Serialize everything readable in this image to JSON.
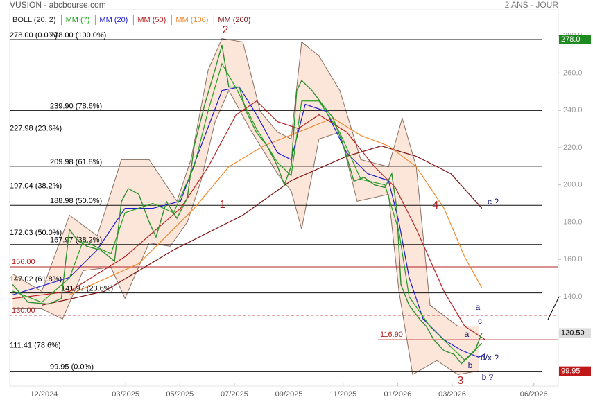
{
  "chart_data": {
    "type": "line",
    "title": "VUSION - abcbourse.com",
    "subtitle": "2 ANS - JOUR",
    "xlim": [
      2024.812,
      2026.492
    ],
    "xticks": [
      {
        "value": 2024.917,
        "label": "12/2024"
      },
      {
        "value": 2025.167,
        "label": "03/2025"
      },
      {
        "value": 2025.333,
        "label": "05/2025"
      },
      {
        "value": 2025.5,
        "label": "07/2025"
      },
      {
        "value": 2025.667,
        "label": "09/2025"
      },
      {
        "value": 2025.833,
        "label": "11/2025"
      },
      {
        "value": 2026.0,
        "label": "01/2026"
      },
      {
        "value": 2026.167,
        "label": "03/2026"
      },
      {
        "value": 2026.417,
        "label": "06/2026"
      }
    ],
    "ylim": [
      92,
      294
    ],
    "yticks": [
      {
        "value": 140,
        "label": "140.0"
      },
      {
        "value": 160,
        "label": "160.0"
      },
      {
        "value": 180,
        "label": "180.0"
      },
      {
        "value": 200,
        "label": "200.0"
      },
      {
        "value": 220,
        "label": "220.0"
      },
      {
        "value": 240,
        "label": "240.0"
      },
      {
        "value": 260,
        "label": "260.0"
      },
      {
        "value": 280,
        "label": "280.0"
      }
    ],
    "bollinger": {
      "name": "BOLL (20, 2)",
      "color": "#8a6e62",
      "fill": "#fbe2d2",
      "upper": {
        "x": [
          2024.821,
          2024.91,
          2024.995,
          2025.08,
          2025.154,
          2025.239,
          2025.324,
          2025.367,
          2025.42,
          2025.462,
          2025.526,
          2025.579,
          2025.632,
          2025.674,
          2025.706,
          2025.759,
          2025.823,
          2025.887,
          2025.972,
          2026.014,
          2026.057,
          2026.099,
          2026.184,
          2026.248
        ],
        "values": [
          152.1,
          142.8,
          183.7,
          172.6,
          213.5,
          213.5,
          191.2,
          213.5,
          261.8,
          278.5,
          276.7,
          239.5,
          228.3,
          224.6,
          276.7,
          269.2,
          250.6,
          213.5,
          209.7,
          235.8,
          209.7,
          135.4,
          124.2,
          124.2
        ]
      },
      "lower": {
        "x": [
          2024.821,
          2024.91,
          2024.974,
          2025.037,
          2025.122,
          2025.165,
          2025.239,
          2025.303,
          2025.356,
          2025.398,
          2025.441,
          2025.483,
          2025.547,
          2025.632,
          2025.674,
          2025.706,
          2025.759,
          2025.823,
          2025.876,
          2025.972,
          2026.004,
          2026.046,
          2026.12,
          2026.184,
          2026.248
        ],
        "values": [
          133.5,
          133.5,
          128,
          154,
          155.8,
          139.1,
          168.8,
          167,
          180,
          202.3,
          233.9,
          250.6,
          230.2,
          206,
          196.7,
          176.3,
          224.6,
          228.3,
          191.2,
          194.9,
          142.8,
          98.2,
          105.7,
          98.2,
          100.1
        ]
      }
    },
    "price": {
      "color": "#2f8f2f",
      "x": [
        2024.821,
        2024.868,
        2024.931,
        2024.97,
        2024.995,
        2025.016,
        2025.048,
        2025.091,
        2025.133,
        2025.154,
        2025.175,
        2025.207,
        2025.239,
        2025.26,
        2025.292,
        2025.324,
        2025.356,
        2025.377,
        2025.409,
        2025.441,
        2025.462,
        2025.483,
        2025.515,
        2025.536,
        2025.568,
        2025.6,
        2025.632,
        2025.653,
        2025.674,
        2025.691,
        2025.706,
        2025.738,
        2025.77,
        2025.802,
        2025.834,
        2025.866,
        2025.897,
        2025.929,
        2025.961,
        2025.982,
        2025.997,
        2026.01,
        2026.035,
        2026.067,
        2026.088,
        2026.11,
        2026.142,
        2026.173,
        2026.195,
        2026.216,
        2026.237,
        2026.258
      ],
      "values": [
        146.5,
        137,
        136,
        139,
        176,
        171,
        167,
        165,
        159,
        191,
        198,
        195,
        180,
        172,
        191,
        182,
        193,
        221,
        243,
        262,
        275,
        252.5,
        252.5,
        239.5,
        228,
        221,
        210,
        200,
        210,
        250.6,
        256,
        250.6,
        243,
        236,
        221,
        202,
        204,
        200,
        198.6,
        206,
        187.5,
        146.5,
        135.4,
        128,
        124,
        117,
        111,
        109,
        104,
        107.5,
        111,
        120.5
      ]
    },
    "series": [
      {
        "name": "MM (7)",
        "color": "#22a022",
        "x": [
          2024.821,
          2024.91,
          2024.995,
          2025.037,
          2025.122,
          2025.165,
          2025.25,
          2025.314,
          2025.377,
          2025.42,
          2025.462,
          2025.505,
          2025.568,
          2025.632,
          2025.674,
          2025.706,
          2025.759,
          2025.823,
          2025.887,
          2025.961,
          2026.004,
          2026.035,
          2026.099,
          2026.163,
          2026.205,
          2026.258
        ],
        "values": [
          143,
          137,
          150,
          170,
          163,
          185,
          190,
          185,
          210,
          240,
          265,
          252,
          230,
          212,
          205,
          245,
          245,
          228,
          203,
          200,
          175,
          140,
          124,
          113,
          106,
          115
        ]
      },
      {
        "name": "MM (20)",
        "color": "#1c1ccf",
        "x": [
          2024.821,
          2024.995,
          2025.08,
          2025.165,
          2025.25,
          2025.335,
          2025.398,
          2025.462,
          2025.515,
          2025.568,
          2025.632,
          2025.674,
          2025.717,
          2025.781,
          2025.844,
          2025.908,
          2025.972,
          2026.004,
          2026.035,
          2026.078,
          2026.142,
          2026.195,
          2026.248,
          2026.269
        ],
        "values": [
          141,
          150.3,
          165.1,
          187.4,
          187.4,
          191.2,
          220.9,
          250.6,
          252.5,
          237.6,
          217.2,
          213.5,
          243.2,
          239.5,
          217.2,
          206,
          202.3,
          180,
          150.3,
          128,
          116.8,
          111.2,
          107.5,
          109.4
        ]
      },
      {
        "name": "MM (50)",
        "color": "#b52020",
        "x": [
          2024.821,
          2024.995,
          2025.165,
          2025.335,
          2025.42,
          2025.505,
          2025.568,
          2025.632,
          2025.696,
          2025.759,
          2025.844,
          2025.929,
          2025.993,
          2026.057,
          2026.142,
          2026.205,
          2026.269
        ],
        "values": [
          139,
          142.8,
          161.4,
          187.4,
          209.7,
          237.6,
          245,
          233.9,
          230.2,
          237.6,
          228.3,
          209.7,
          198.6,
          176.3,
          142.8,
          124.2,
          116.8
        ]
      },
      {
        "name": "MM (100)",
        "color": "#ef8a2e",
        "x": [
          2024.995,
          2025.207,
          2025.377,
          2025.483,
          2025.59,
          2025.696,
          2025.802,
          2025.887,
          2025.972,
          2026.057,
          2026.142,
          2026.205,
          2026.258
        ],
        "values": [
          141,
          157.7,
          187.4,
          209.7,
          220.9,
          228.3,
          235.8,
          226.5,
          220.9,
          209.7,
          187.4,
          161.4,
          144.7
        ]
      },
      {
        "name": "MM (200)",
        "color": "#7a1010",
        "x": [
          2024.91,
          2025.101,
          2025.314,
          2025.526,
          2025.674,
          2025.844,
          2025.95,
          2026.057,
          2026.163,
          2026.258
        ],
        "values": [
          135.4,
          142.8,
          165.1,
          183.7,
          202.3,
          215.3,
          220.9,
          215.3,
          206,
          187.4
        ]
      }
    ],
    "levels": [
      {
        "value": 278.0,
        "label": "278.00 (100.0%)"
      },
      {
        "value": 239.9,
        "label": "239.90 (78.6%)"
      },
      {
        "value": 209.98,
        "label": "209.98 (61.8%)"
      },
      {
        "value": 188.98,
        "label": "188.98 (50.0%)"
      },
      {
        "value": 167.97,
        "label": "167.97 (38.2%)"
      },
      {
        "value": 141.97,
        "label": "141.97 (23.6%)"
      },
      {
        "value": 99.95,
        "label": "99.95  (0.0%)"
      }
    ],
    "levels_unlined": [
      {
        "value": 278.0,
        "label": "278.00 (0.0%)"
      },
      {
        "value": 227.98,
        "label": "227.98 (23.6%)"
      },
      {
        "value": 197.04,
        "label": "197.04 (38.2%)"
      },
      {
        "value": 172.03,
        "label": "172.03 (50.0%)"
      },
      {
        "value": 147.02,
        "label": "147.02 (61.8%)"
      },
      {
        "value": 111.41,
        "label": "111.41 (78.6%)"
      }
    ],
    "red_lines": [
      {
        "value": 156.0,
        "label": "156.00",
        "style": "solid"
      },
      {
        "value": 130.0,
        "label": "130.00",
        "style": "dashed"
      },
      {
        "value": 116.9,
        "label": "116.90",
        "style": "solid"
      }
    ],
    "price_tags": [
      {
        "value": 278.0,
        "label": "278.0",
        "color": "#1f8a1f",
        "text_color": "#ffffff"
      },
      {
        "value": 120.5,
        "label": "120.50",
        "color": "#dddddd",
        "text_color": "#000000"
      },
      {
        "value": 99.95,
        "label": "99.95",
        "color": "#c01818",
        "text_color": "#ffffff"
      }
    ],
    "annotations": [
      {
        "text": "2",
        "color": "#b22222"
      },
      {
        "text": "1",
        "color": "#b22222"
      },
      {
        "text": "4",
        "color": "#b22222"
      },
      {
        "text": "3",
        "color": "#b22222"
      },
      {
        "text": "c ?",
        "color": "#1a1a70"
      },
      {
        "text": "a",
        "color": "#1a1a70"
      },
      {
        "text": "c",
        "color": "#1a1a70"
      },
      {
        "text": "a",
        "color": "#1a1a70"
      },
      {
        "text": "d/x ?",
        "color": "#1a1a70"
      },
      {
        "text": "b",
        "color": "#1a1a70"
      },
      {
        "text": "b ?",
        "color": "#1a1a70"
      }
    ]
  }
}
